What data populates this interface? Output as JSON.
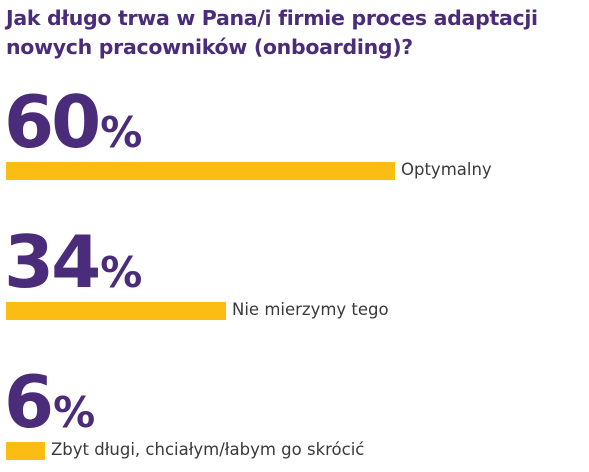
{
  "chart_data": {
    "type": "bar",
    "orientation": "horizontal",
    "title": "Jak długo trwa w Pana/i firmie proces adaptacji nowych pracowników (onboarding)?",
    "unit": "%",
    "categories": [
      "Optymalny",
      "Nie mierzymy tego",
      "Zbyt długi, chciałym/łabym go skrócić"
    ],
    "values": [
      60,
      34,
      6
    ],
    "value_labels": [
      "60",
      "34",
      "6"
    ],
    "xlim": [
      0,
      100
    ],
    "grid": false,
    "legend": "none"
  },
  "colors": {
    "title": "#4b2c7a",
    "value": "#4b2c7a",
    "bar": "#fbbd13",
    "label": "#3a3a3a"
  }
}
